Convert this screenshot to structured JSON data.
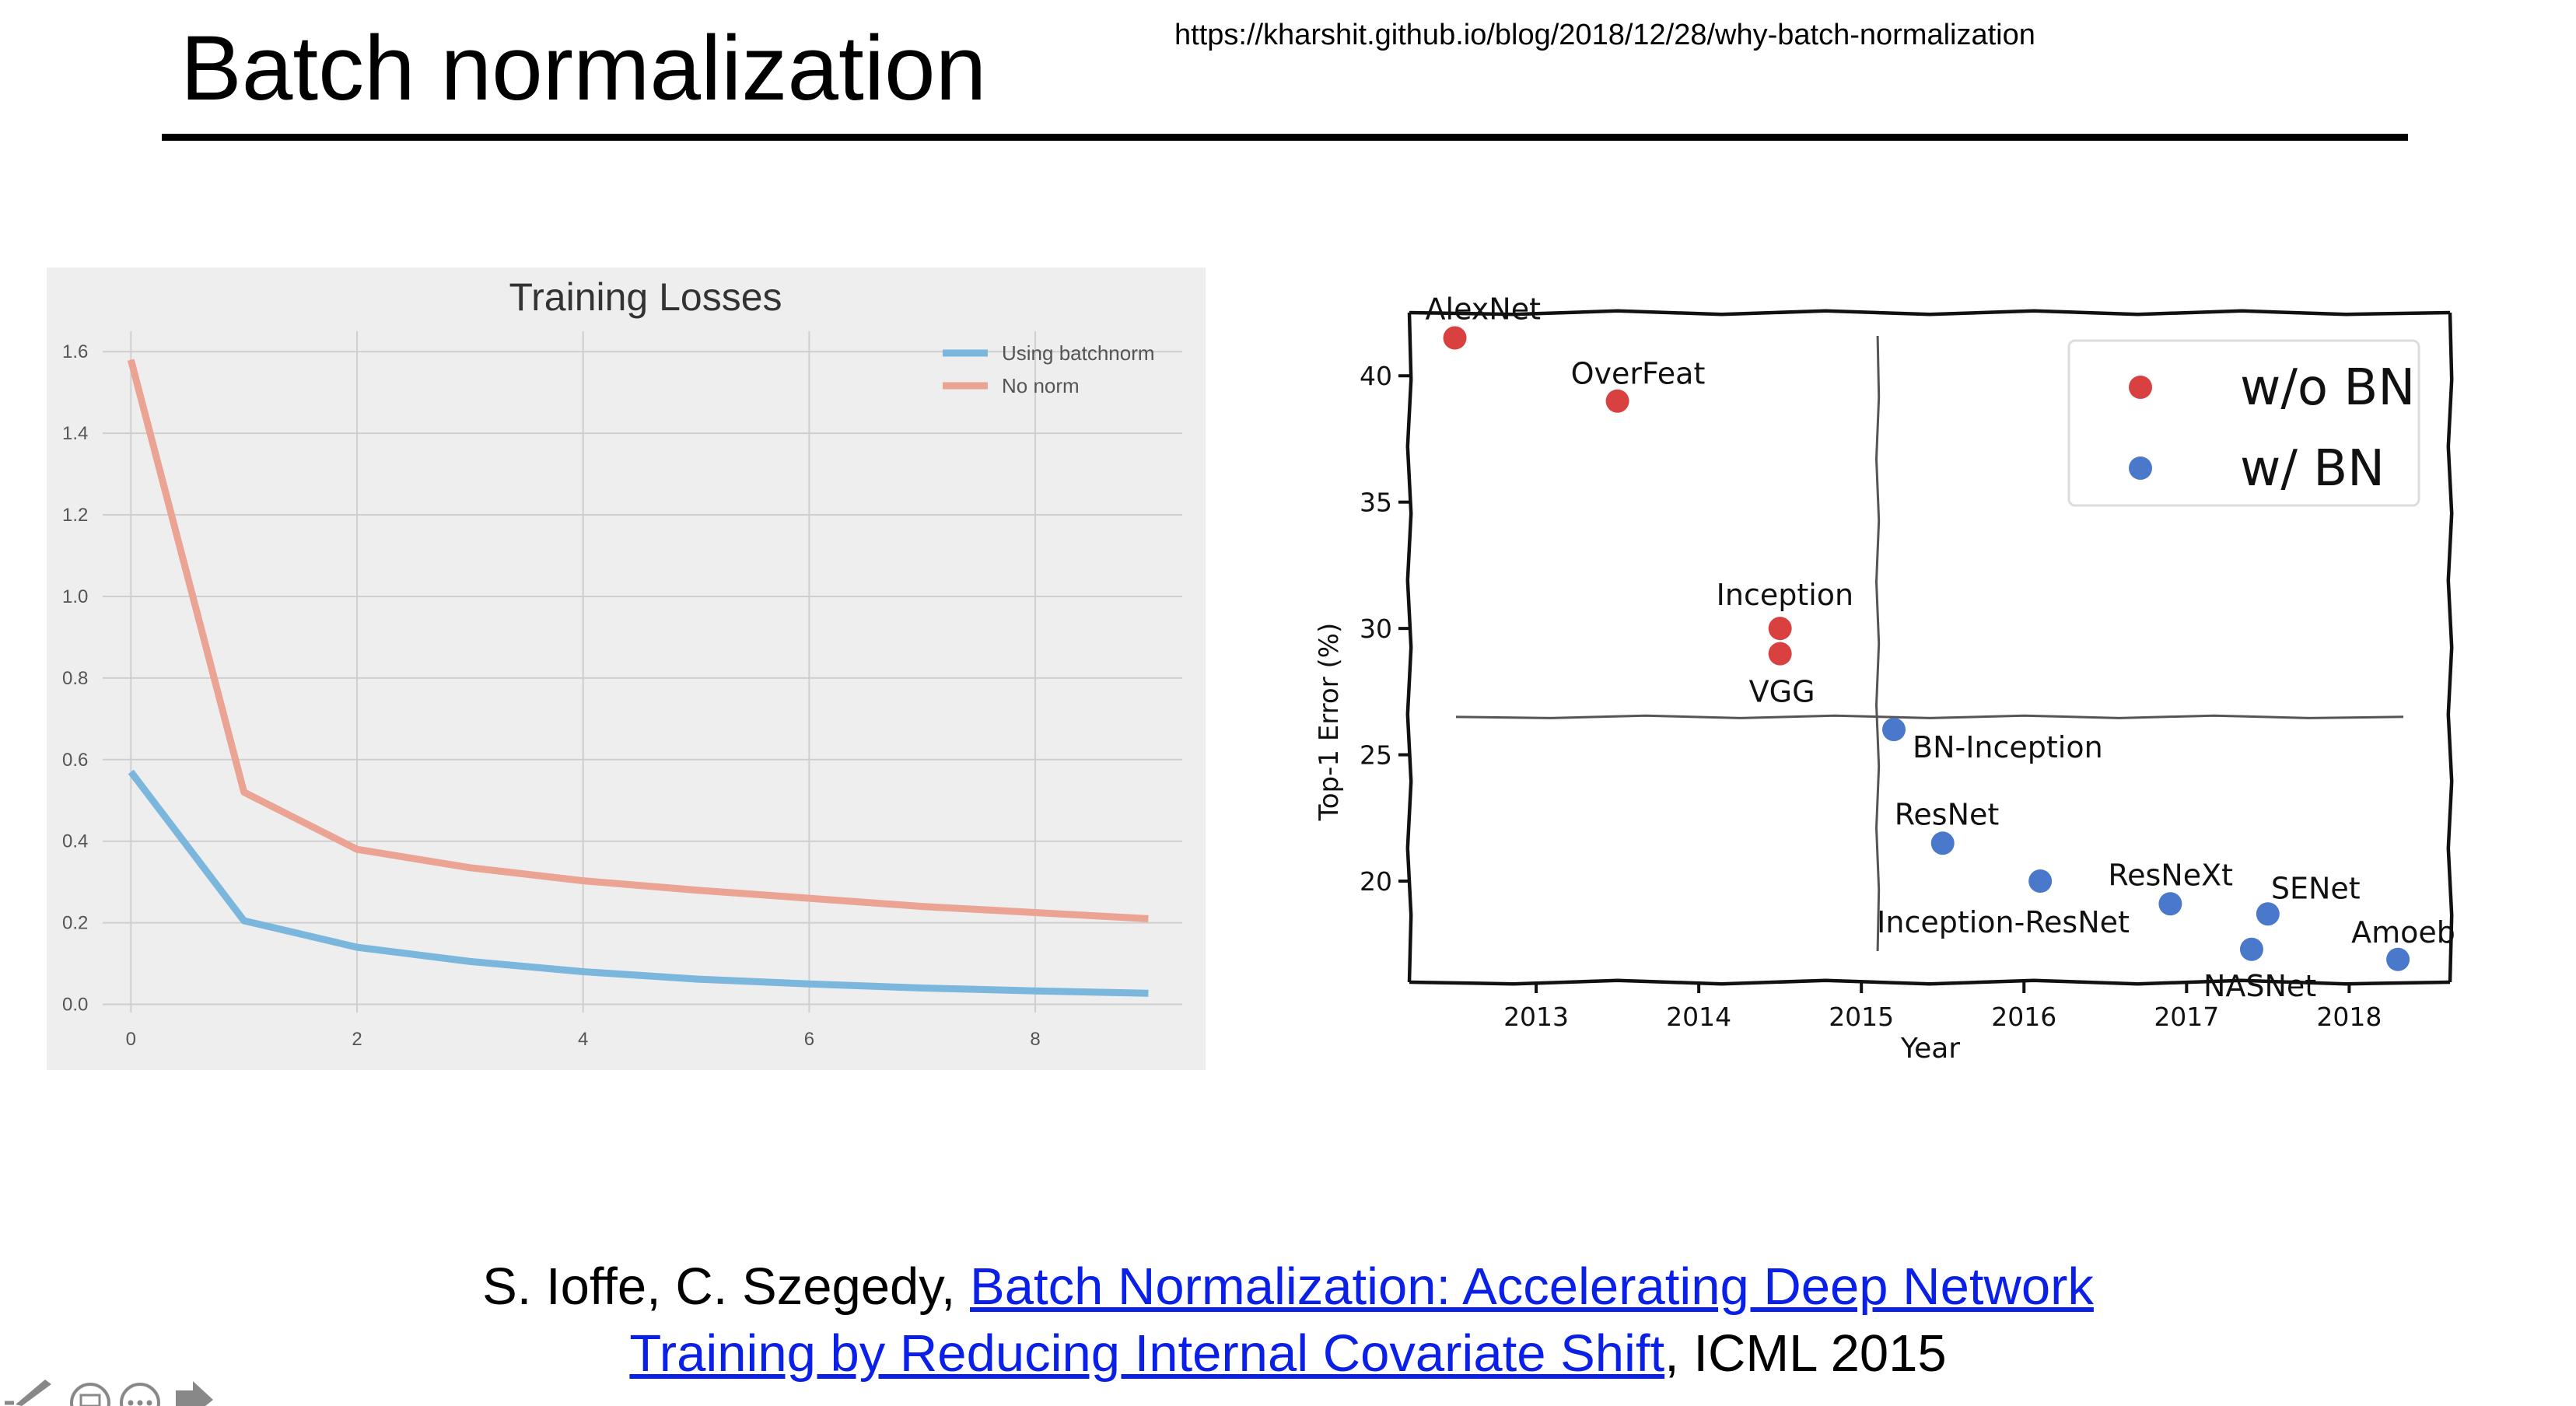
{
  "slide": {
    "title": "Batch normalization",
    "source_url": "https://kharshit.github.io/blog/2018/12/28/why-batch-normalization"
  },
  "citation": {
    "authors": "S. Ioffe, C. Szegedy, ",
    "link_line1": "Batch Normalization: Accelerating Deep Network",
    "link_line2": "Training by Reducing Internal Covariate Shift",
    "venue": ", ICML 2015"
  },
  "chart_data": [
    {
      "type": "line",
      "title": "Training Losses",
      "xlabel": "",
      "ylabel": "",
      "x": [
        0,
        1,
        2,
        3,
        4,
        5,
        6,
        7,
        8,
        9
      ],
      "xticks": [
        "0",
        "2",
        "4",
        "6",
        "8"
      ],
      "xtick_values": [
        0,
        2,
        4,
        6,
        8
      ],
      "yticks": [
        "0.0",
        "0.2",
        "0.4",
        "0.6",
        "0.8",
        "1.0",
        "1.2",
        "1.4",
        "1.6"
      ],
      "ytick_values": [
        0.0,
        0.2,
        0.4,
        0.6,
        0.8,
        1.0,
        1.2,
        1.4,
        1.6
      ],
      "xlim": [
        -0.25,
        9.3
      ],
      "ylim": [
        -0.02,
        1.65
      ],
      "grid": true,
      "legend_position": "top-right",
      "series": [
        {
          "name": "Using batchnorm",
          "color": "#7bb6dc",
          "values": [
            0.57,
            0.205,
            0.14,
            0.105,
            0.08,
            0.062,
            0.05,
            0.04,
            0.033,
            0.027
          ]
        },
        {
          "name": "No norm",
          "color": "#eba393",
          "values": [
            1.58,
            0.52,
            0.38,
            0.335,
            0.303,
            0.28,
            0.26,
            0.24,
            0.225,
            0.21
          ]
        }
      ]
    },
    {
      "type": "scatter",
      "title": "",
      "xlabel": "Year",
      "ylabel": "Top-1 Error (%)",
      "xticks": [
        "2013",
        "2014",
        "2015",
        "2016",
        "2017",
        "2018"
      ],
      "xtick_values": [
        2013,
        2014,
        2015,
        2016,
        2017,
        2018
      ],
      "yticks": [
        "20",
        "25",
        "30",
        "35",
        "40"
      ],
      "ytick_values": [
        20,
        25,
        30,
        35,
        40
      ],
      "xlim": [
        2012.22,
        2018.62
      ],
      "ylim": [
        16.0,
        42.5
      ],
      "grid": false,
      "legend_position": "top-right",
      "divider_lines": {
        "x": 2015.1,
        "y": 26.5
      },
      "series": [
        {
          "name": "w/o BN",
          "color": "#d94141",
          "points": [
            {
              "label": "AlexNet",
              "x": 2012.5,
              "y": 41.5
            },
            {
              "label": "OverFeat",
              "x": 2013.5,
              "y": 39.0
            },
            {
              "label": "Inception",
              "x": 2014.5,
              "y": 30.0
            },
            {
              "label": "VGG",
              "x": 2014.5,
              "y": 29.0
            }
          ]
        },
        {
          "name": "w/ BN",
          "color": "#4a79cc",
          "points": [
            {
              "label": "BN-Inception",
              "x": 2015.2,
              "y": 26.0
            },
            {
              "label": "ResNet",
              "x": 2015.5,
              "y": 21.5
            },
            {
              "label": "Inception-ResNet",
              "x": 2016.1,
              "y": 20.0
            },
            {
              "label": "ResNeXt",
              "x": 2016.9,
              "y": 19.1
            },
            {
              "label": "NASNet",
              "x": 2017.4,
              "y": 17.3
            },
            {
              "label": "SENet",
              "x": 2017.5,
              "y": 18.7
            },
            {
              "label": "Amoeb",
              "x": 2018.3,
              "y": 16.9
            }
          ]
        }
      ]
    }
  ]
}
